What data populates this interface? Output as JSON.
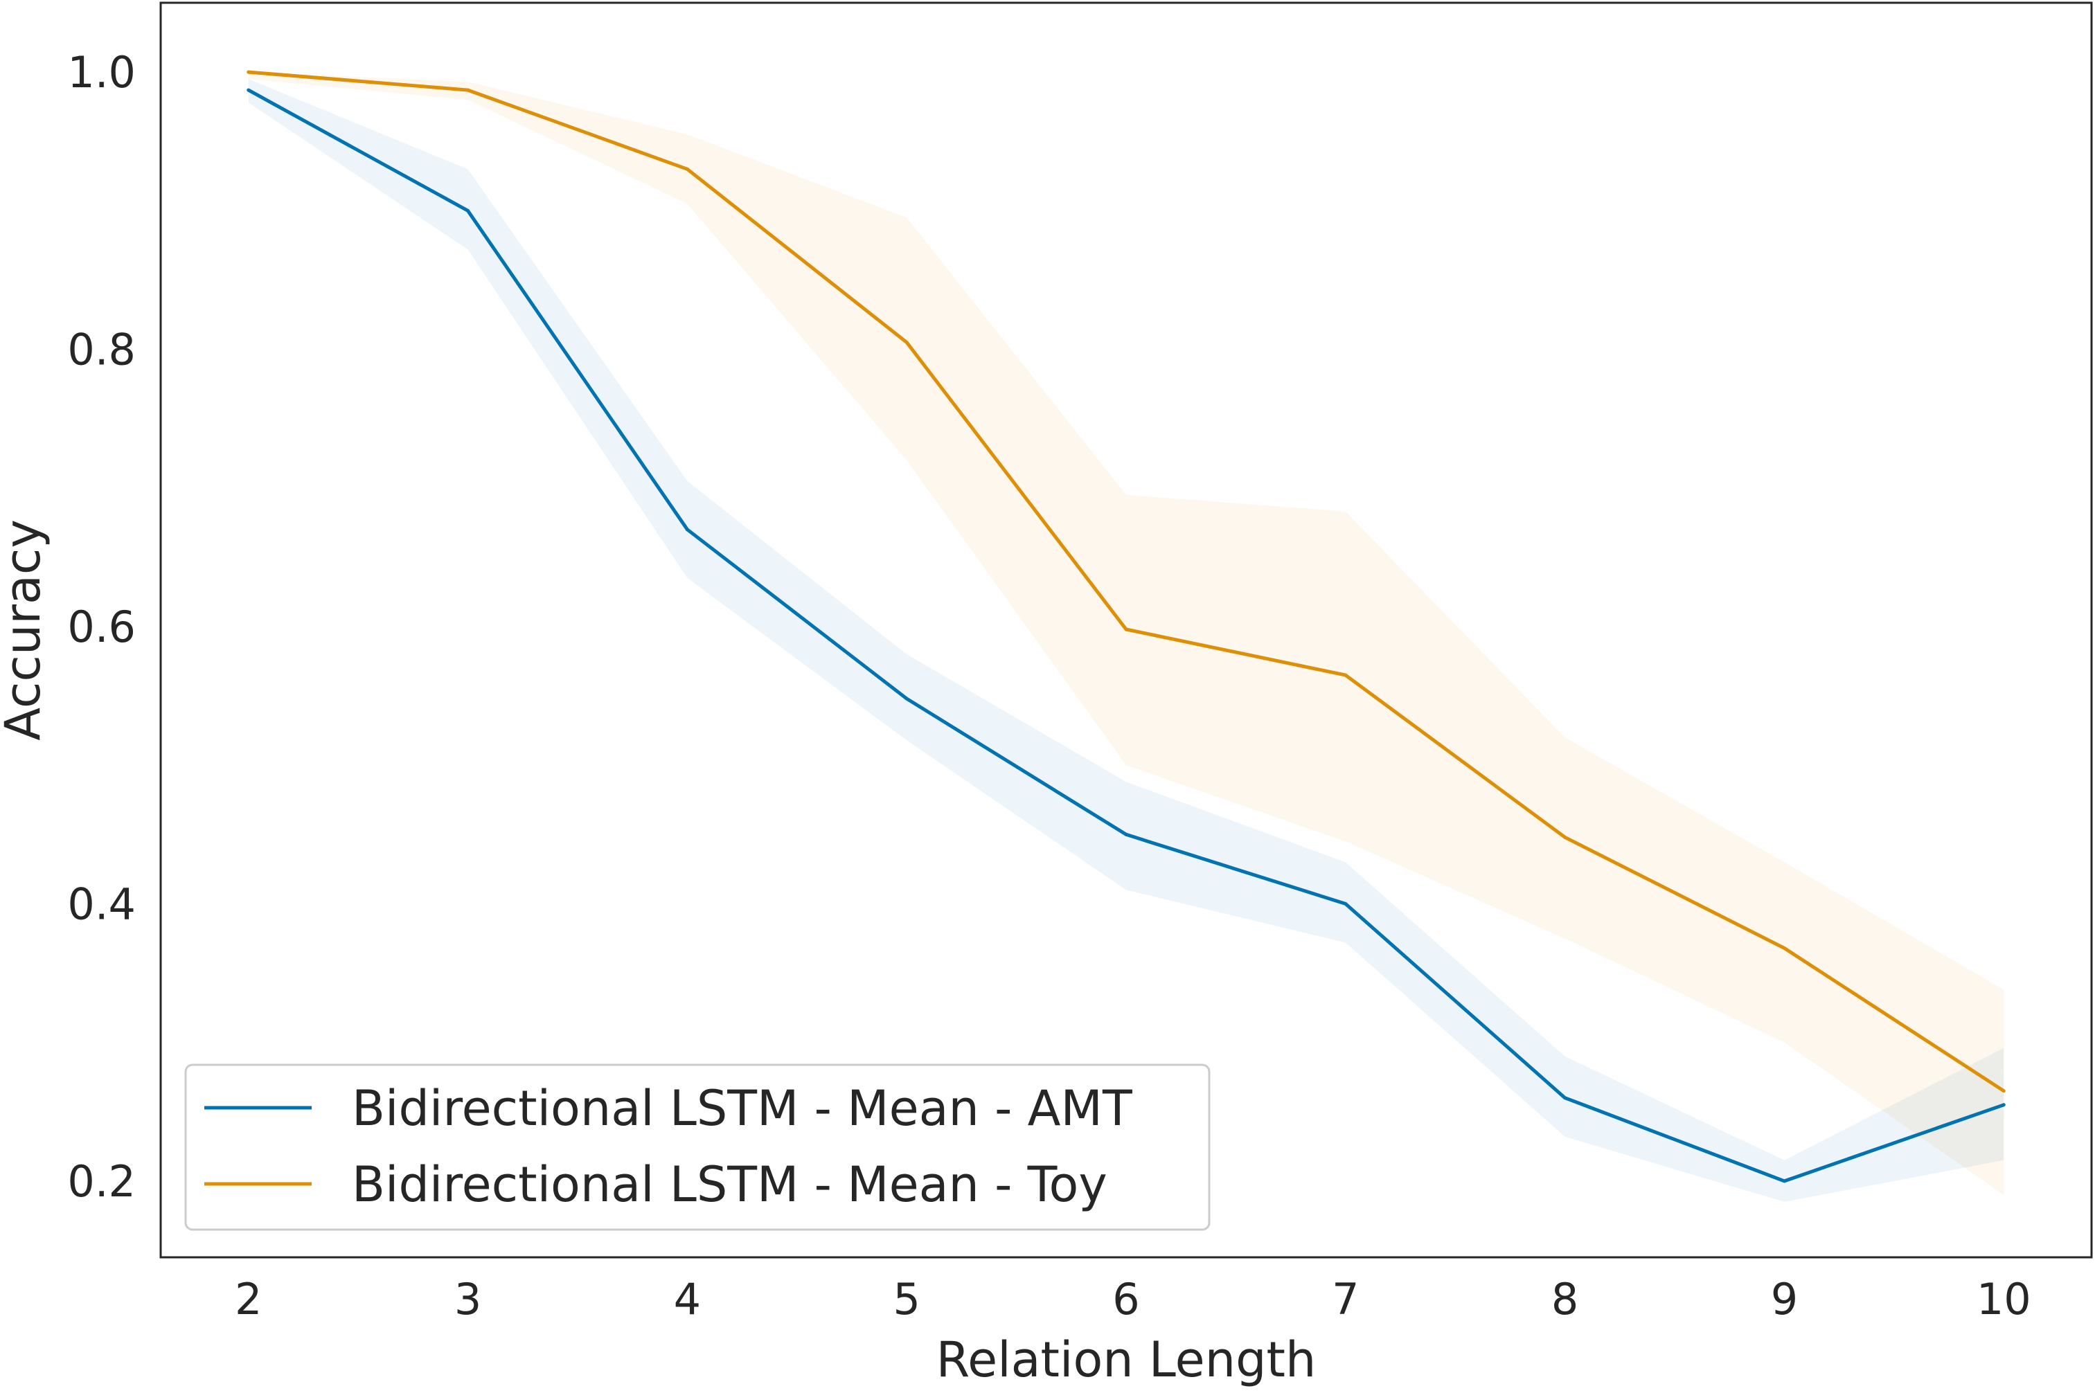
{
  "chart_data": {
    "type": "line",
    "title": "",
    "xlabel": "Relation Length",
    "ylabel": "Accuracy",
    "x": [
      2,
      3,
      4,
      5,
      6,
      7,
      8,
      9,
      10
    ],
    "xlim": [
      1.6,
      10.4
    ],
    "ylim": [
      0.145,
      1.05
    ],
    "xticks": [
      2,
      3,
      4,
      5,
      6,
      7,
      8,
      9,
      10
    ],
    "xtick_labels": [
      "2",
      "3",
      "4",
      "5",
      "6",
      "7",
      "8",
      "9",
      "10"
    ],
    "yticks": [
      0.2,
      0.4,
      0.6,
      0.8,
      1.0
    ],
    "ytick_labels": [
      "0.2",
      "0.4",
      "0.6",
      "0.8",
      "1.0"
    ],
    "grid": false,
    "legend_position": "lower-left",
    "series": [
      {
        "name": "Bidirectional LSTM - Mean - AMT",
        "color": "#0173b2",
        "values": [
          0.987,
          0.9,
          0.67,
          0.548,
          0.45,
          0.4,
          0.26,
          0.2,
          0.255
        ],
        "lower": [
          0.978,
          0.872,
          0.635,
          0.518,
          0.41,
          0.372,
          0.232,
          0.185,
          0.215
        ],
        "upper": [
          0.995,
          0.93,
          0.705,
          0.58,
          0.488,
          0.43,
          0.29,
          0.215,
          0.296
        ]
      },
      {
        "name": "Bidirectional LSTM - Mean - Toy",
        "color": "#de8f05",
        "values": [
          1.0,
          0.987,
          0.93,
          0.805,
          0.598,
          0.565,
          0.448,
          0.368,
          0.265
        ],
        "lower": [
          0.995,
          0.98,
          0.905,
          0.72,
          0.5,
          0.445,
          0.375,
          0.3,
          0.19
        ],
        "upper": [
          1.0,
          0.993,
          0.955,
          0.895,
          0.695,
          0.683,
          0.52,
          0.43,
          0.338
        ]
      }
    ]
  }
}
